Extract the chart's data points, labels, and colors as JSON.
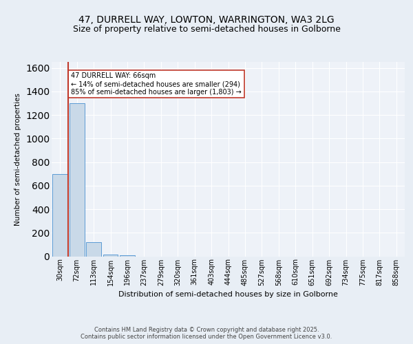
{
  "title1": "47, DURRELL WAY, LOWTON, WARRINGTON, WA3 2LG",
  "title2": "Size of property relative to semi-detached houses in Golborne",
  "xlabel": "Distribution of semi-detached houses by size in Golborne",
  "ylabel": "Number of semi-detached properties",
  "categories": [
    "30sqm",
    "72sqm",
    "113sqm",
    "154sqm",
    "196sqm",
    "237sqm",
    "279sqm",
    "320sqm",
    "361sqm",
    "403sqm",
    "444sqm",
    "485sqm",
    "527sqm",
    "568sqm",
    "610sqm",
    "651sqm",
    "692sqm",
    "734sqm",
    "775sqm",
    "817sqm",
    "858sqm"
  ],
  "values": [
    700,
    1300,
    120,
    15,
    8,
    0,
    0,
    0,
    0,
    0,
    0,
    0,
    0,
    0,
    0,
    0,
    0,
    0,
    0,
    0,
    0
  ],
  "bar_color": "#c9d9e8",
  "bar_edge_color": "#5b9bd5",
  "vline_color": "#c0392b",
  "annotation_text": "47 DURRELL WAY: 66sqm\n← 14% of semi-detached houses are smaller (294)\n85% of semi-detached houses are larger (1,803) →",
  "ylim": [
    0,
    1650
  ],
  "yticks": [
    0,
    200,
    400,
    600,
    800,
    1000,
    1200,
    1400,
    1600
  ],
  "bg_color": "#e8eef5",
  "plot_bg_color": "#eef2f8",
  "grid_color": "#ffffff",
  "footer": "Contains HM Land Registry data © Crown copyright and database right 2025.\nContains public sector information licensed under the Open Government Licence v3.0.",
  "title1_fontsize": 10,
  "title2_fontsize": 9
}
